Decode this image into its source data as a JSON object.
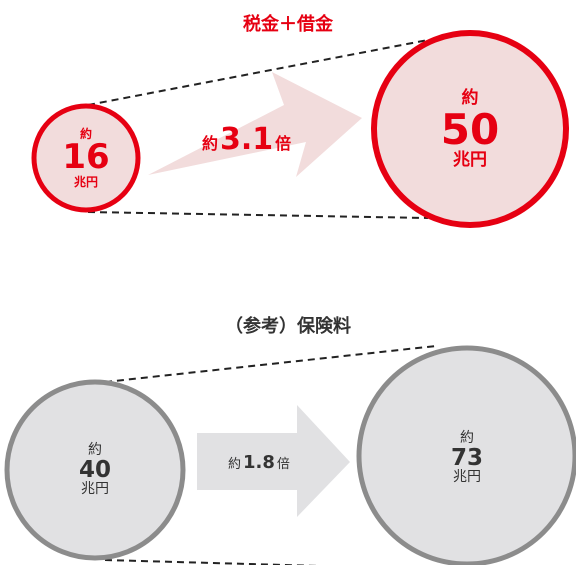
{
  "top": {
    "title": "税金＋借金",
    "left": {
      "prefix": "約",
      "value": "16",
      "unit": "兆円"
    },
    "right": {
      "prefix": "約",
      "value": "50",
      "unit": "兆円"
    },
    "ratio": {
      "prefix": "約",
      "value": "3.1",
      "suffix": "倍"
    }
  },
  "bottom": {
    "title": "（参考）保険料",
    "left": {
      "prefix": "約",
      "value": "40",
      "unit": "兆円"
    },
    "right": {
      "prefix": "約",
      "value": "73",
      "unit": "兆円"
    },
    "ratio": {
      "prefix": "約",
      "value": "1.8",
      "suffix": "倍"
    }
  },
  "colors": {
    "accent_red": "#e60012",
    "pink_fill": "#f2dcdc",
    "gray_ring": "#8c8c8c",
    "gray_fill": "#e1e1e3",
    "dash_line": "#222222"
  }
}
